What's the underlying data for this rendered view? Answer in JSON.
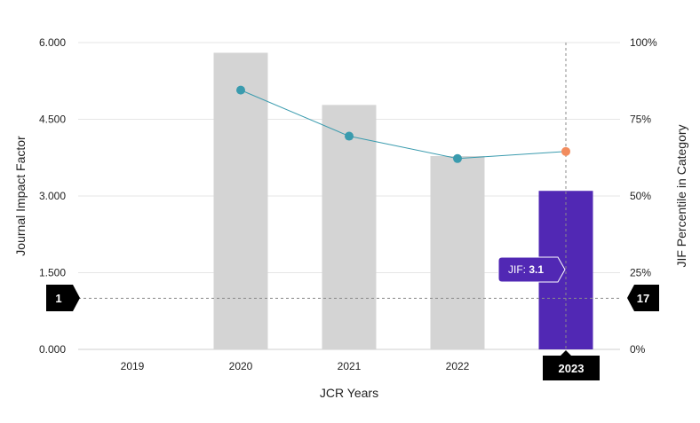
{
  "chart_data": {
    "type": "bar",
    "categories": [
      "2019",
      "2020",
      "2021",
      "2022",
      "2023"
    ],
    "series": [
      {
        "values": [
          null,
          5.8,
          4.78,
          3.78,
          3.1
        ],
        "axis": "left"
      },
      {
        "values": [
          null,
          84.5,
          69.5,
          62.2,
          64.5
        ],
        "axis": "right"
      }
    ],
    "xlabel": "JCR Years",
    "ylabel": "Journal Impact Factor",
    "ylabel_right": "JIF Percentile in Category",
    "ylim": [
      0,
      6
    ],
    "ylim_right": [
      0,
      100
    ],
    "yticks": [
      "0.000",
      "1.500",
      "3.000",
      "4.500",
      "6.000"
    ],
    "yticks_right": [
      "0%",
      "25%",
      "50%",
      "75%",
      "100%"
    ],
    "bar_color": "#d4d4d4",
    "highlight_color": "#5128b4",
    "line_color": "#3a9bae",
    "highlight_point_color": "#f28c5e",
    "crosshair": {
      "left_value": "1",
      "right_value": "17",
      "x_label": "2023"
    },
    "tooltip": {
      "label": "JIF:",
      "value": "3.1"
    },
    "grid": true,
    "legend": "none"
  }
}
